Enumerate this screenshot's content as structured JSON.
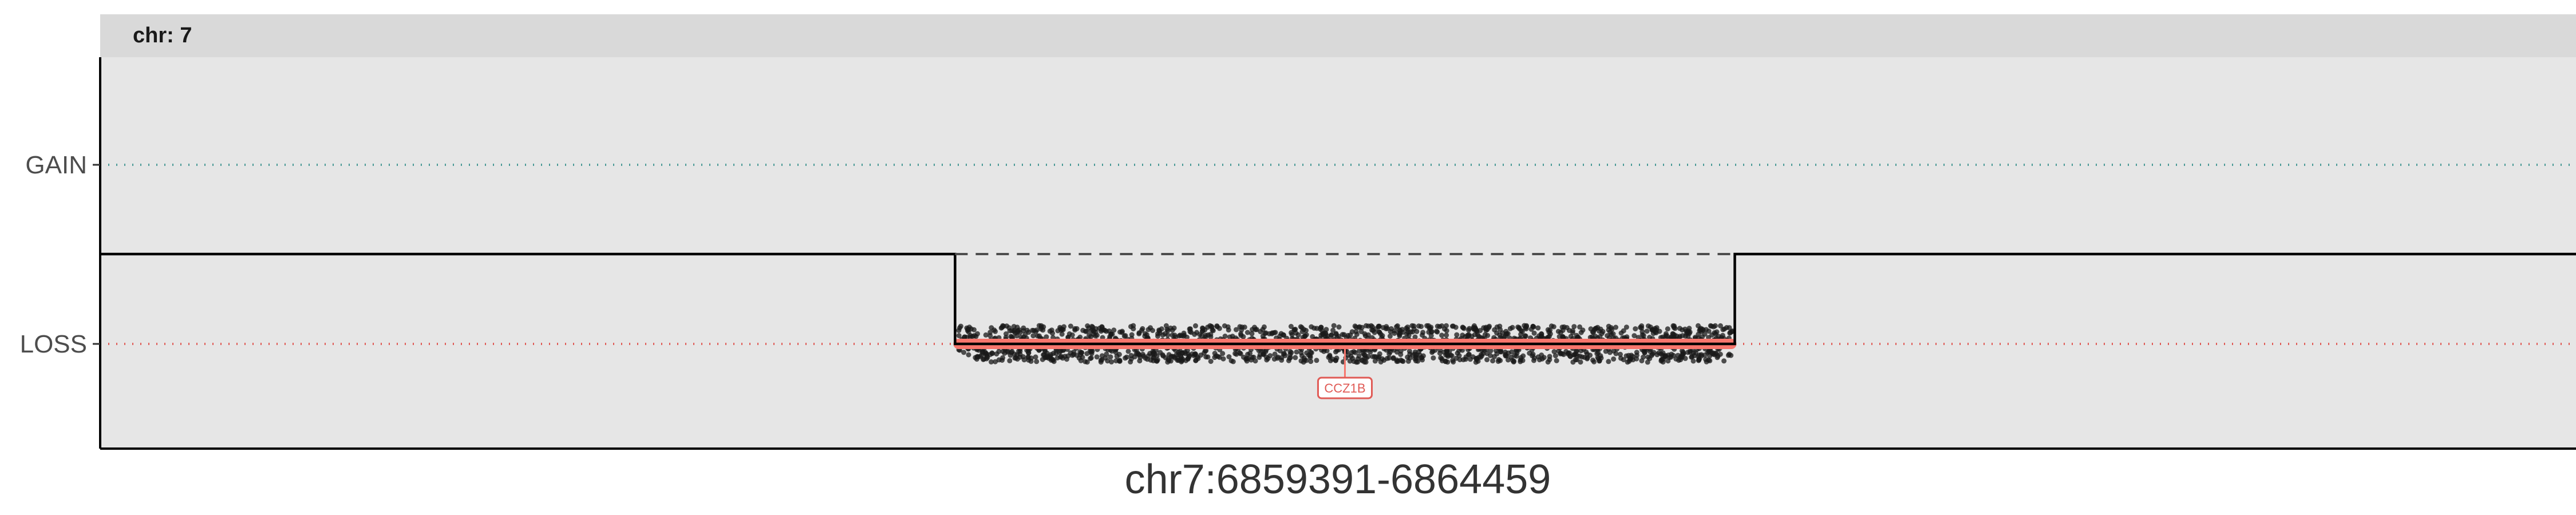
{
  "chart_data": {
    "type": "scatter",
    "facet_label": "chr: 7",
    "xlabel": "chr7:6859391-6864459",
    "ylabel": "",
    "y_levels": [
      "GAIN",
      "LOSS"
    ],
    "xlim": [
      6859391,
      6864459
    ],
    "loss_region": {
      "start": 6861141,
      "end": 6862737
    },
    "segment_line": {
      "x": [
        6859391,
        6861141,
        6861141,
        6862737,
        6862737,
        6864459
      ],
      "y": [
        "NEUTRAL",
        "NEUTRAL",
        "LOSS",
        "LOSS",
        "NEUTRAL",
        "NEUTRAL"
      ]
    },
    "reference_line": {
      "style": "dashed",
      "x": [
        6861141,
        6862737
      ],
      "y": "NEUTRAL"
    },
    "points": {
      "level": "LOSS",
      "x_range": [
        6861141,
        6862737
      ],
      "count": 1800
    },
    "gene": {
      "name": "CCZ1B",
      "start": 6861141,
      "end": 6862737,
      "level": "LOSS",
      "color": "#f8766d"
    },
    "colors": {
      "panel": "#e6e6e6",
      "strip": "#d9d9d9",
      "gain_line": "#4a9a96",
      "loss_line": "#e05a55",
      "points": "#1a1a1a",
      "segment": "#000000"
    },
    "grid": false,
    "legend": "none"
  }
}
